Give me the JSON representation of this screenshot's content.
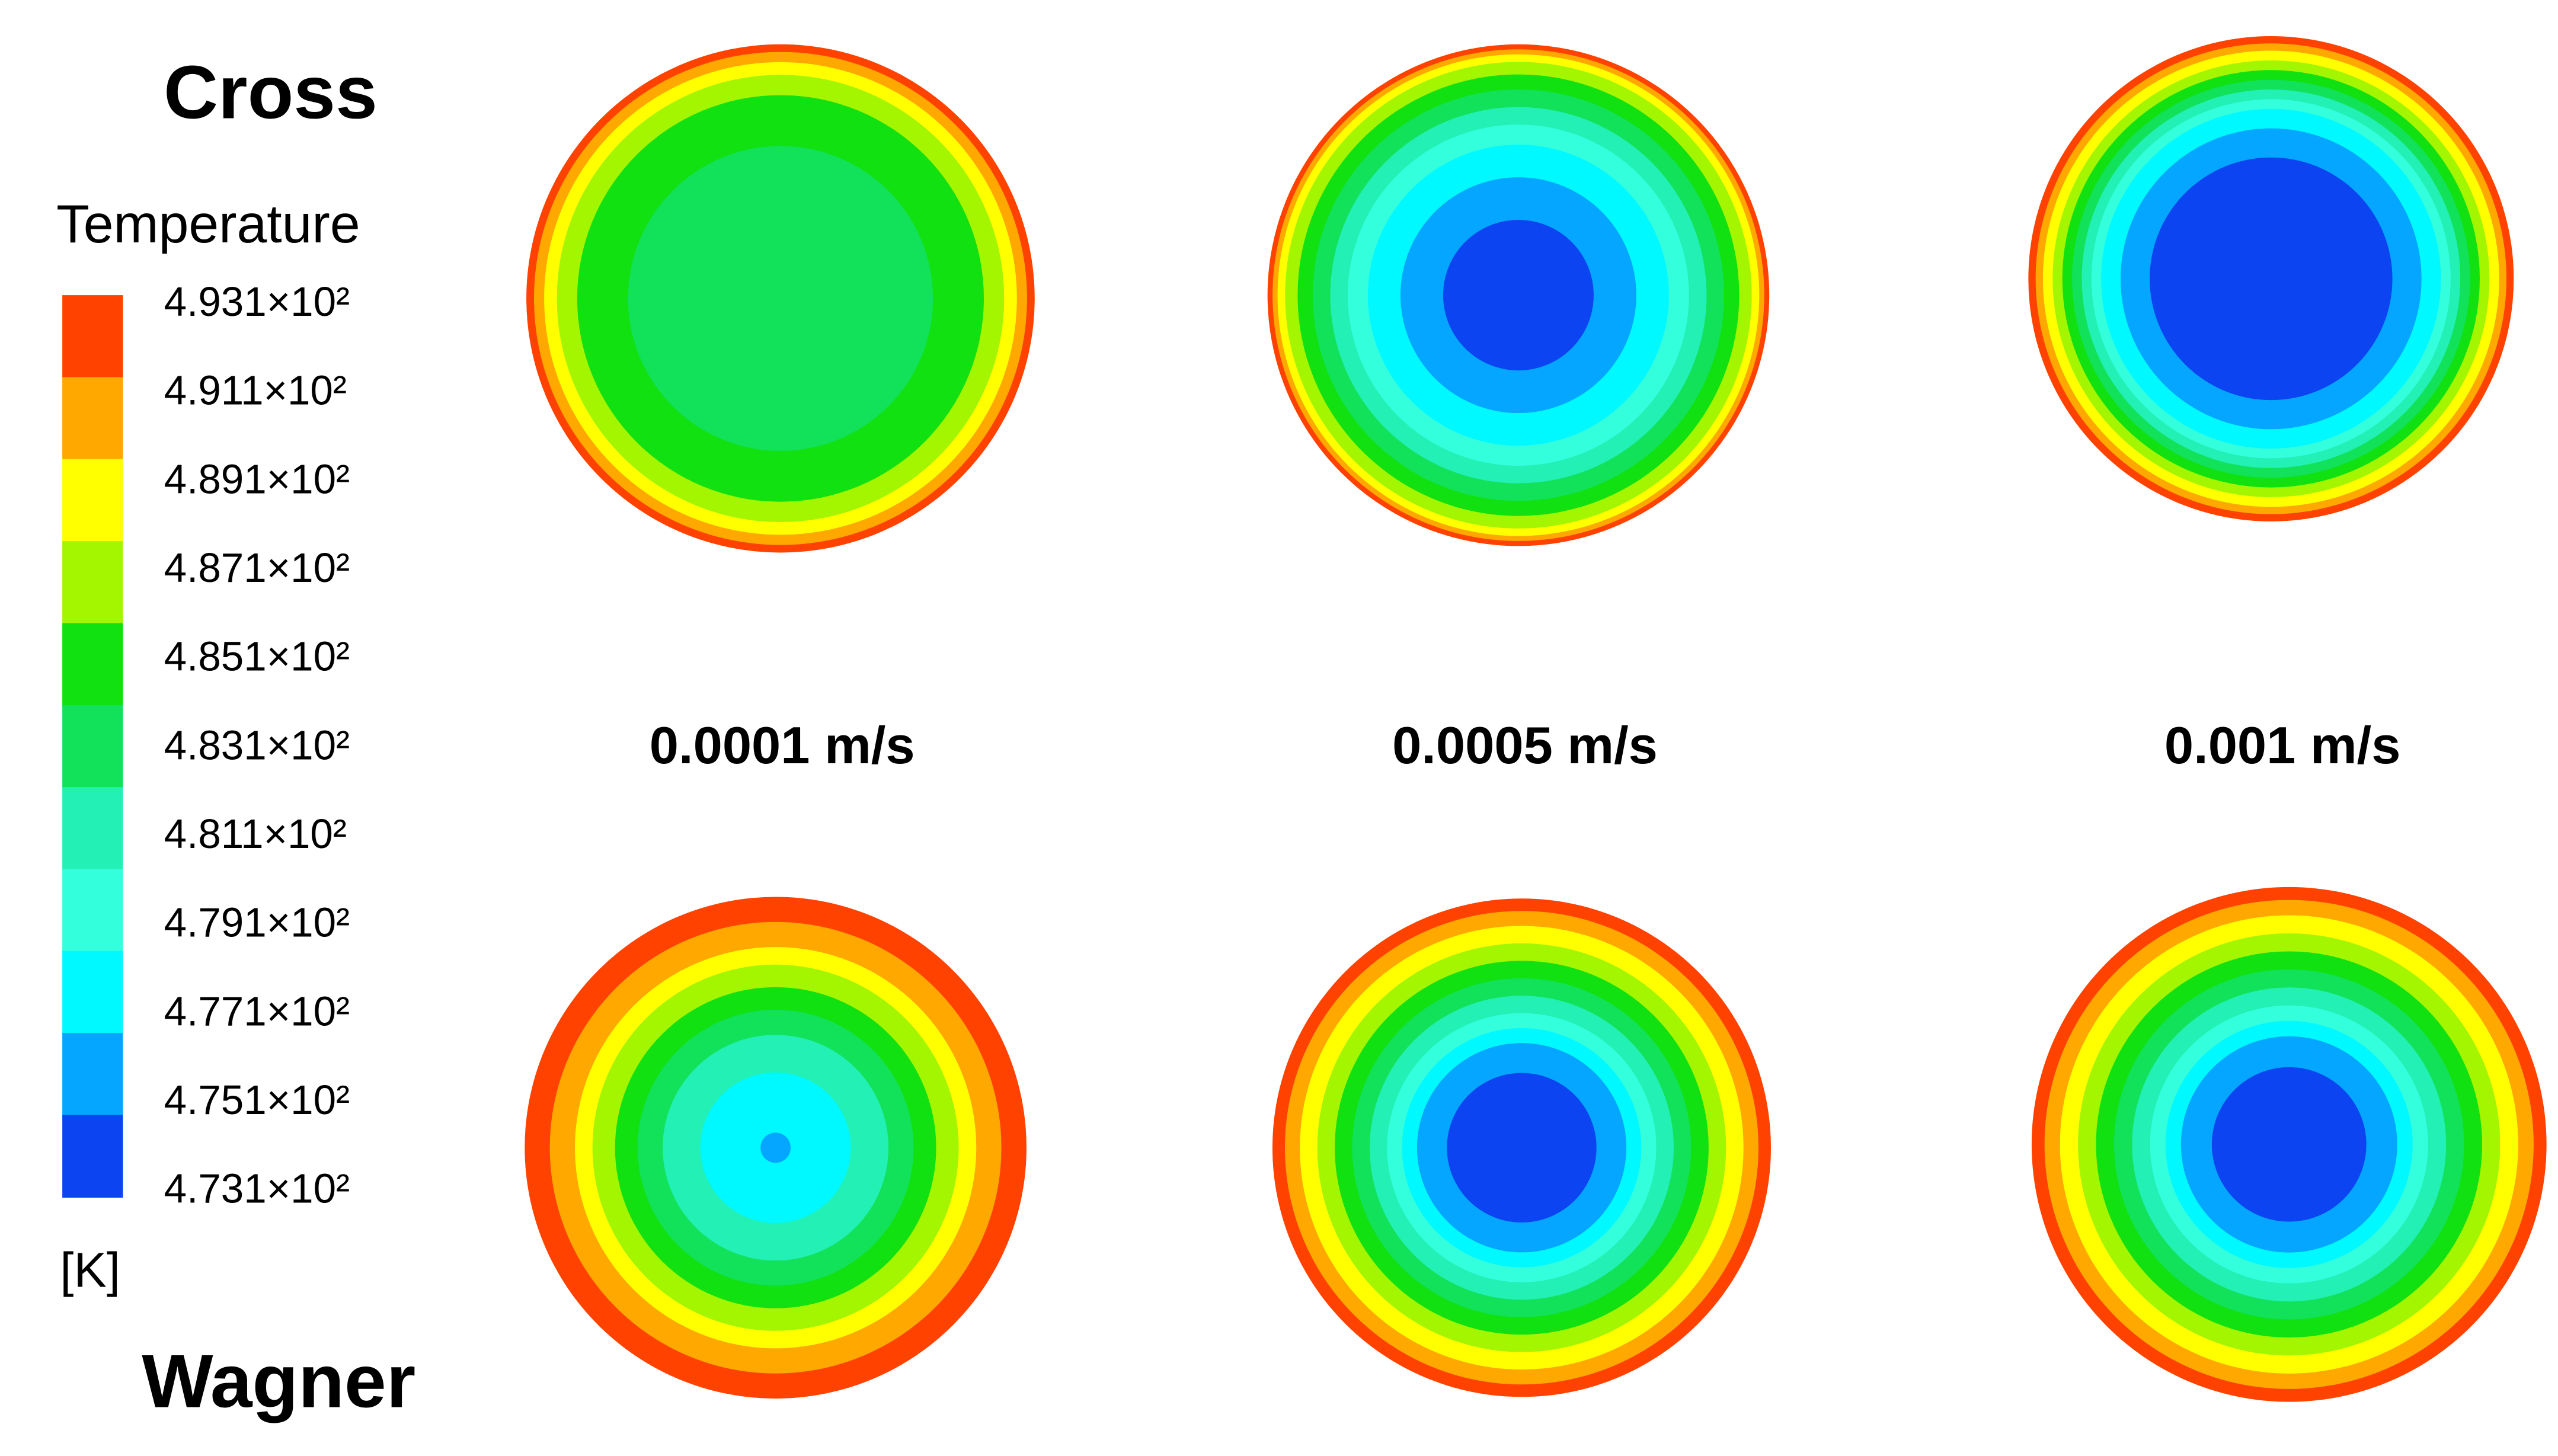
{
  "row_labels": [
    "Cross",
    "Wagner"
  ],
  "velocity_labels": [
    "0.0001 m/s",
    "0.0005 m/s",
    "0.001 m/s"
  ],
  "colorbar": {
    "title": "Temperature",
    "labels": [
      "4.931×10²",
      "4.911×10²",
      "4.891×10²",
      "4.871×10²",
      "4.851×10²",
      "4.831×10²",
      "4.811×10²",
      "4.791×10²",
      "4.771×10²",
      "4.751×10²",
      "4.731×10²"
    ],
    "colors": [
      "#ff4200",
      "#ffa800",
      "#ffff00",
      "#a4f500",
      "#11e011",
      "#11e25a",
      "#22f0b4",
      "#33ffdd",
      "#00f8ff",
      "#04a6ff",
      "#0b44f0"
    ],
    "unit": "[K]"
  }
}
